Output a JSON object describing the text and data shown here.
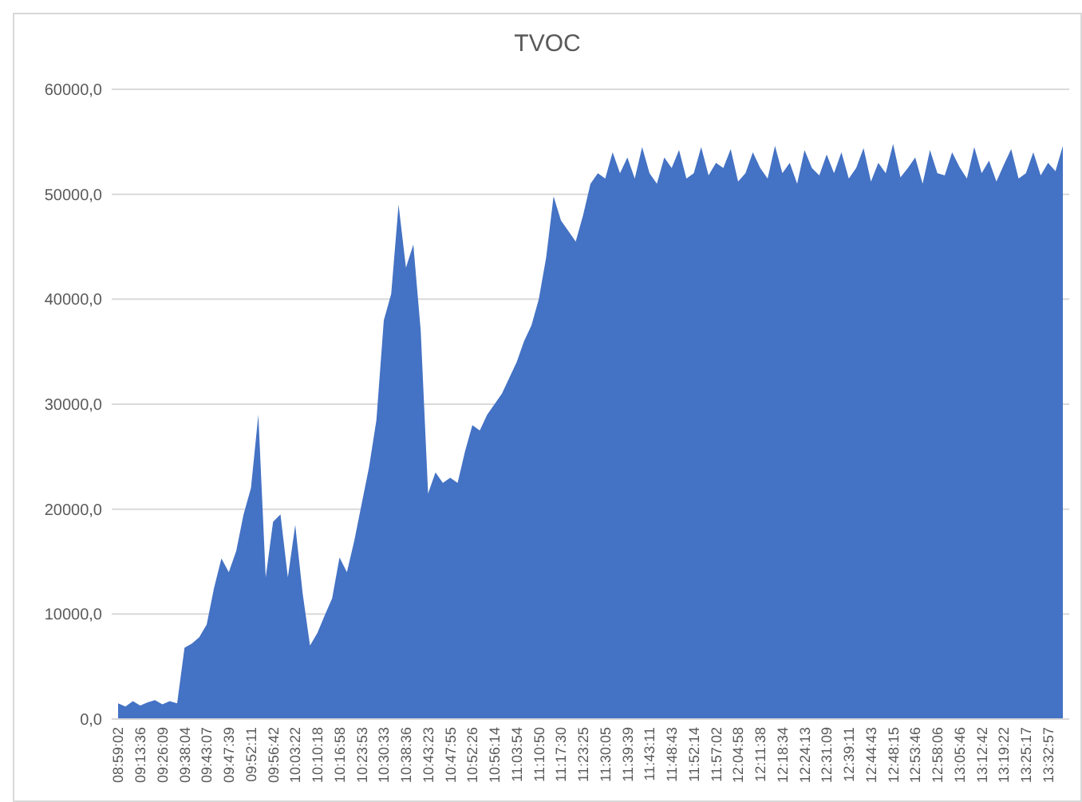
{
  "chart_data": {
    "type": "area",
    "title": "TVOC",
    "categories": [
      "08:59:02",
      null,
      null,
      "09:13:36",
      null,
      null,
      "09:26:09",
      null,
      null,
      "09:38:04",
      null,
      null,
      "09:43:07",
      null,
      null,
      "09:47:39",
      null,
      null,
      "09:52:11",
      null,
      null,
      "09:56:42",
      null,
      null,
      "10:03:22",
      null,
      null,
      "10:10:18",
      null,
      null,
      "10:16:58",
      null,
      null,
      "10:23:53",
      null,
      null,
      "10:30:33",
      null,
      null,
      "10:38:36",
      null,
      null,
      "10:43:23",
      null,
      null,
      "10:47:55",
      null,
      null,
      "10:52:26",
      null,
      null,
      "10:56:14",
      null,
      null,
      "11:03:54",
      null,
      null,
      "11:10:50",
      null,
      null,
      "11:17:30",
      null,
      null,
      "11:23:25",
      null,
      null,
      "11:30:05",
      null,
      null,
      "11:39:39",
      null,
      null,
      "11:43:11",
      null,
      null,
      "11:48:43",
      null,
      null,
      "11:52:14",
      null,
      null,
      "11:57:02",
      null,
      null,
      "12:04:58",
      null,
      null,
      "12:11:38",
      null,
      null,
      "12:18:34",
      null,
      null,
      "12:24:13",
      null,
      null,
      "12:31:09",
      null,
      null,
      "12:39:11",
      null,
      null,
      "12:44:43",
      null,
      null,
      "12:48:15",
      null,
      null,
      "12:53:46",
      null,
      null,
      "12:58:06",
      null,
      null,
      "13:05:46",
      null,
      null,
      "13:12:42",
      null,
      null,
      "13:19:22",
      null,
      null,
      "13:25:17",
      null,
      null,
      "13:32:57",
      null,
      null
    ],
    "series": [
      {
        "color": "#4472c4",
        "values": [
          1500,
          1200,
          1700,
          1300,
          1600,
          1800,
          1400,
          1700,
          1500,
          6800,
          7200,
          7800,
          9000,
          12500,
          15300,
          14000,
          16000,
          19500,
          22000,
          29000,
          13500,
          18800,
          19500,
          13500,
          18500,
          12000,
          7000,
          8200,
          9900,
          11500,
          15400,
          14000,
          17000,
          20500,
          24000,
          28500,
          38000,
          40500,
          49000,
          43000,
          45200,
          37000,
          21500,
          23500,
          22500,
          23000,
          22500,
          25500,
          28000,
          27500,
          29000,
          30000,
          31000,
          32500,
          34000,
          36000,
          37500,
          40000,
          44000,
          49800,
          47500,
          46500,
          45500,
          48000,
          51000,
          52000,
          51500,
          54000,
          52000,
          53500,
          51500,
          54500,
          52000,
          51000,
          53500,
          52500,
          54200,
          51500,
          52000,
          54500,
          51800,
          53000,
          52500,
          54300,
          51200,
          52000,
          54000,
          52500,
          51500,
          54600,
          52000,
          53000,
          51000,
          54200,
          52500,
          51800,
          53800,
          52000,
          54000,
          51500,
          52500,
          54400,
          51200,
          53000,
          52000,
          54800,
          51600,
          52500,
          53500,
          51000,
          54200,
          52000,
          51800,
          54000,
          52600,
          51500,
          54500,
          52000,
          53200,
          51200,
          52800,
          54300,
          51500,
          52000,
          54000,
          51800,
          53000,
          52200,
          54600
        ]
      }
    ],
    "ylim": [
      0,
      60000
    ],
    "yticks": [
      {
        "value": 0,
        "label": "0,0"
      },
      {
        "value": 10000,
        "label": "10000,0"
      },
      {
        "value": 20000,
        "label": "20000,0"
      },
      {
        "value": 30000,
        "label": "30000,0"
      },
      {
        "value": 40000,
        "label": "40000,0"
      },
      {
        "value": 50000,
        "label": "50000,0"
      },
      {
        "value": 60000,
        "label": "60000,0"
      }
    ],
    "grid": "y"
  }
}
